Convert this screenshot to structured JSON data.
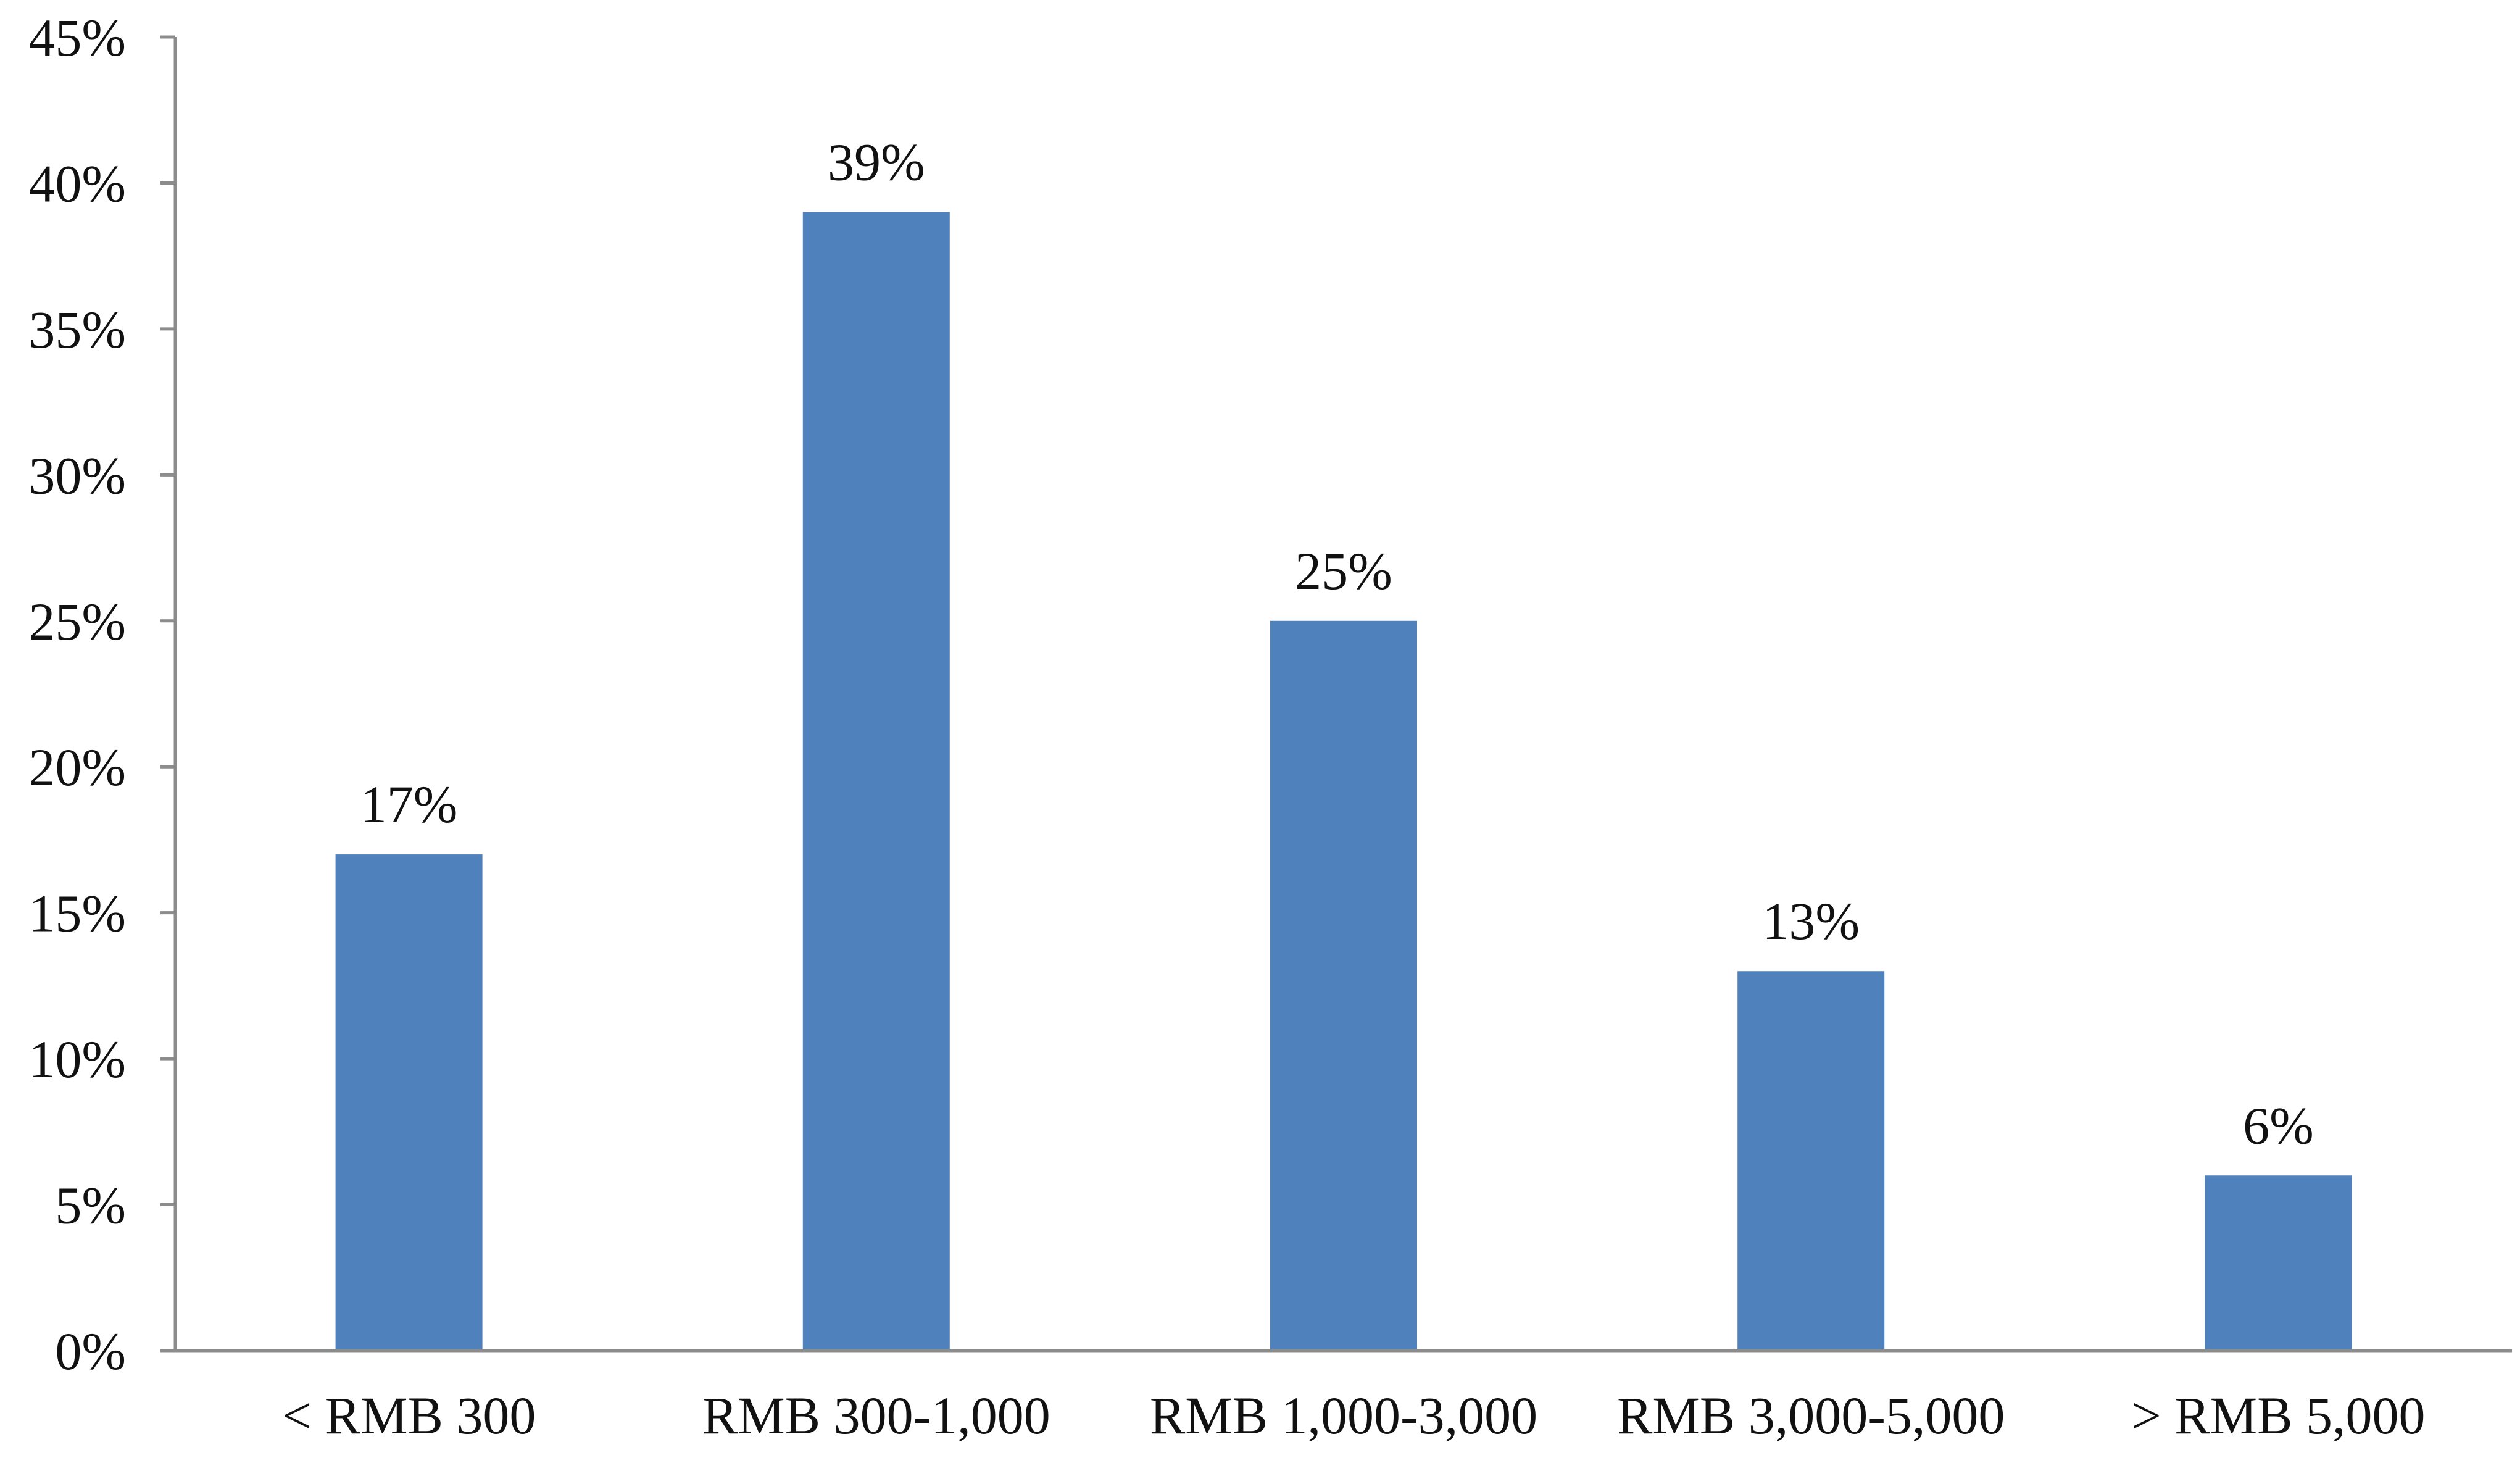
{
  "chart_data": {
    "type": "bar",
    "title": "",
    "xlabel": "",
    "ylabel": "",
    "categories": [
      "< RMB 300",
      "RMB 300-1,000",
      "RMB 1,000-3,000",
      "RMB 3,000-5,000",
      "> RMB 5,000"
    ],
    "values": [
      17,
      39,
      25,
      13,
      6
    ],
    "data_labels": [
      "17%",
      "39%",
      "25%",
      "13%",
      "6%"
    ],
    "ylim": [
      0,
      45
    ],
    "yticks": [
      0,
      5,
      10,
      15,
      20,
      25,
      30,
      35,
      40,
      45
    ],
    "ytick_labels": [
      "0%",
      "5%",
      "10%",
      "15%",
      "20%",
      "25%",
      "30%",
      "35%",
      "40%",
      "45%"
    ],
    "grid": false,
    "legend": "none",
    "colors": {
      "bar": "#4f81bd",
      "axis": "#8c8c8c",
      "text": "#111111"
    }
  }
}
